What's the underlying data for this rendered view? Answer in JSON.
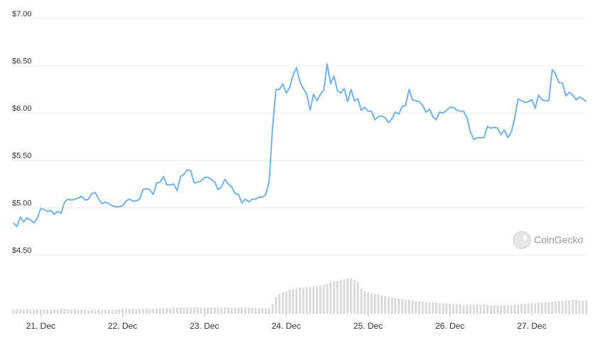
{
  "chart_data": {
    "type": "line",
    "watermark": "CoinGecko",
    "color": "#75b2e4",
    "x": [
      20.667,
      20.708,
      20.75,
      20.792,
      20.833,
      20.875,
      20.917,
      20.958,
      21,
      21.042,
      21.083,
      21.125,
      21.167,
      21.208,
      21.25,
      21.292,
      21.333,
      21.375,
      21.417,
      21.458,
      21.5,
      21.542,
      21.583,
      21.625,
      21.667,
      21.708,
      21.75,
      21.792,
      21.833,
      21.875,
      21.917,
      21.958,
      22,
      22.042,
      22.083,
      22.125,
      22.167,
      22.208,
      22.25,
      22.292,
      22.333,
      22.375,
      22.417,
      22.458,
      22.5,
      22.542,
      22.583,
      22.625,
      22.667,
      22.708,
      22.75,
      22.792,
      22.833,
      22.875,
      22.917,
      22.958,
      23,
      23.042,
      23.083,
      23.125,
      23.167,
      23.208,
      23.25,
      23.292,
      23.333,
      23.375,
      23.417,
      23.458,
      23.5,
      23.542,
      23.583,
      23.625,
      23.667,
      23.708,
      23.75,
      23.792,
      23.833,
      23.875,
      23.917,
      23.958,
      24,
      24.042,
      24.083,
      24.125,
      24.167,
      24.208,
      24.25,
      24.292,
      24.333,
      24.375,
      24.417,
      24.458,
      24.5,
      24.542,
      24.583,
      24.625,
      24.667,
      24.708,
      24.75,
      24.792,
      24.833,
      24.875,
      24.917,
      24.958,
      25,
      25.042,
      25.083,
      25.125,
      25.167,
      25.208,
      25.25,
      25.292,
      25.333,
      25.375,
      25.417,
      25.458,
      25.5,
      25.542,
      25.583,
      25.625,
      25.667,
      25.708,
      25.75,
      25.792,
      25.833,
      25.875,
      25.917,
      25.958,
      26,
      26.042,
      26.083,
      26.125,
      26.167,
      26.208,
      26.25,
      26.292,
      26.333,
      26.375,
      26.417,
      26.458,
      26.5,
      26.542,
      26.583,
      26.625,
      26.667,
      26.708,
      26.75,
      26.792,
      26.833,
      26.875,
      26.917,
      26.958,
      27,
      27.042,
      27.083,
      27.125,
      27.167,
      27.208,
      27.25,
      27.292,
      27.333,
      27.375,
      27.417,
      27.458,
      27.5,
      27.542,
      27.583,
      27.625,
      27.667
    ],
    "values": [
      4.84,
      4.8,
      4.9,
      4.85,
      4.89,
      4.87,
      4.84,
      4.89,
      4.99,
      4.98,
      4.96,
      4.97,
      4.93,
      4.96,
      4.94,
      5.06,
      5.09,
      5.08,
      5.09,
      5.1,
      5.12,
      5.08,
      5.09,
      5.15,
      5.16,
      5.09,
      5.04,
      5.06,
      5.04,
      5.02,
      5.01,
      5.01,
      5.02,
      5.07,
      5.09,
      5.07,
      5.07,
      5.09,
      5.19,
      5.2,
      5.19,
      5.14,
      5.26,
      5.27,
      5.33,
      5.24,
      5.24,
      5.25,
      5.18,
      5.33,
      5.35,
      5.4,
      5.39,
      5.26,
      5.27,
      5.28,
      5.32,
      5.32,
      5.3,
      5.27,
      5.19,
      5.22,
      5.3,
      5.25,
      5.22,
      5.15,
      5.14,
      5.05,
      5.09,
      5.06,
      5.09,
      5.09,
      5.11,
      5.11,
      5.14,
      5.28,
      5.85,
      6.25,
      6.25,
      6.31,
      6.21,
      6.27,
      6.4,
      6.48,
      6.33,
      6.26,
      6.2,
      6.03,
      6.2,
      6.13,
      6.2,
      6.24,
      6.52,
      6.31,
      6.39,
      6.24,
      6.21,
      6.26,
      6.12,
      6.25,
      6.13,
      6.15,
      6.03,
      6.06,
      6.02,
      6.02,
      5.93,
      5.96,
      5.97,
      5.95,
      5.9,
      5.94,
      6.01,
      5.99,
      6.07,
      6.08,
      6.25,
      6.14,
      6.13,
      6.12,
      6.08,
      6.01,
      6.04,
      5.96,
      5.93,
      6.01,
      6.0,
      6.03,
      6.06,
      6.06,
      6.03,
      6.02,
      6.02,
      5.95,
      5.8,
      5.72,
      5.74,
      5.74,
      5.74,
      5.86,
      5.84,
      5.85,
      5.84,
      5.77,
      5.82,
      5.74,
      5.8,
      5.95,
      6.15,
      6.13,
      6.11,
      6.12,
      6.14,
      6.05,
      6.19,
      6.14,
      6.13,
      6.13,
      6.46,
      6.41,
      6.32,
      6.32,
      6.18,
      6.22,
      6.19,
      6.14,
      6.17,
      6.15,
      6.12
    ],
    "volume": {
      "color": "#dadada",
      "values": [
        6,
        7,
        7,
        6,
        7,
        6,
        6,
        6,
        6,
        6,
        6,
        6,
        6,
        6,
        7,
        7,
        6,
        6,
        7,
        6,
        6,
        6,
        5,
        6,
        6,
        6,
        6,
        6,
        6,
        6,
        6,
        6,
        7,
        7,
        7,
        7,
        7,
        7,
        7,
        7,
        7,
        7,
        8,
        8,
        8,
        8,
        8,
        9,
        9,
        9,
        9,
        9,
        9,
        9,
        9,
        9,
        9,
        9,
        9,
        9,
        9,
        9,
        9,
        9,
        9,
        9,
        9,
        9,
        9,
        9,
        9,
        9,
        8,
        8,
        8,
        8,
        14,
        24,
        28,
        30,
        32,
        34,
        35,
        36,
        37,
        37,
        38,
        38,
        38,
        39,
        40,
        41,
        42,
        44,
        46,
        47,
        48,
        49,
        50,
        50,
        48,
        45,
        36,
        32,
        30,
        29,
        28,
        27,
        26,
        25,
        24,
        23,
        22,
        22,
        21,
        20,
        20,
        19,
        18,
        18,
        17,
        17,
        16,
        16,
        16,
        15,
        15,
        15,
        14,
        14,
        14,
        14,
        13,
        13,
        13,
        13,
        13,
        13,
        13,
        13,
        12,
        12,
        12,
        12,
        12,
        12,
        12,
        13,
        13,
        14,
        14,
        15,
        15,
        15,
        16,
        16,
        16,
        16,
        17,
        18,
        18,
        18,
        19,
        19,
        20,
        20,
        19,
        19,
        19
      ]
    },
    "xlim": [
      20.65,
      27.66
    ],
    "xticks": [
      {
        "value": 21,
        "label": "21. Dec"
      },
      {
        "value": 22,
        "label": "22. Dec"
      },
      {
        "value": 23,
        "label": "23. Dec"
      },
      {
        "value": 24,
        "label": "24. Dec"
      },
      {
        "value": 25,
        "label": "25. Dec"
      },
      {
        "value": 26,
        "label": "26. Dec"
      },
      {
        "value": 27,
        "label": "27. Dec"
      }
    ],
    "ylim": [
      4.5,
      7
    ],
    "yticks": [
      {
        "value": 4.5,
        "label": "$4.50"
      },
      {
        "value": 5,
        "label": "$5.00"
      },
      {
        "value": 5.5,
        "label": "$5.50"
      },
      {
        "value": 6,
        "label": "$6.00"
      },
      {
        "value": 6.5,
        "label": "$6.50"
      },
      {
        "value": 7,
        "label": "$7.00"
      }
    ],
    "grid": true
  }
}
